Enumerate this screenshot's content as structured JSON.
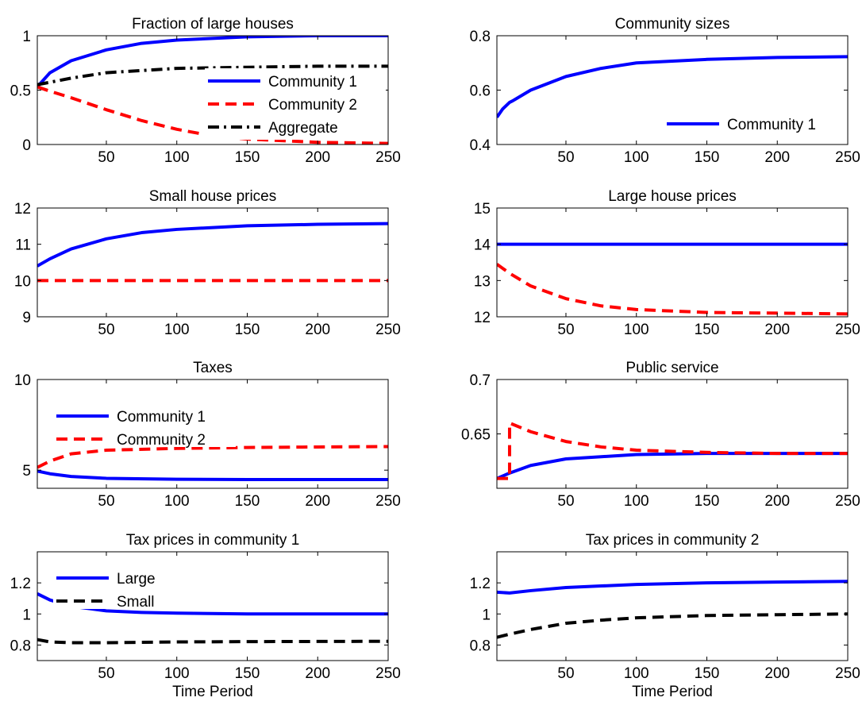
{
  "chart_data": [
    {
      "type": "line",
      "title": "Fraction of large houses",
      "xlabel": "",
      "xlim": [
        1,
        250
      ],
      "ylim": [
        0,
        1
      ],
      "xticks": [
        50,
        100,
        150,
        200,
        250
      ],
      "yticks": [
        0,
        0.5,
        1
      ],
      "xtick_labels": [
        "50",
        "100",
        "150",
        "200",
        "250"
      ],
      "ytick_labels": [
        "0",
        "0.5",
        "1"
      ],
      "legend": "right",
      "series": [
        {
          "name": "Community 1",
          "color": "#0000ff",
          "dash": "solid",
          "x": [
            1,
            10,
            25,
            50,
            75,
            100,
            150,
            200,
            250
          ],
          "y": [
            0.53,
            0.66,
            0.77,
            0.87,
            0.93,
            0.96,
            0.99,
            1.0,
            1.0
          ]
        },
        {
          "name": "Community 2",
          "color": "#ff0000",
          "dash": "dashed",
          "x": [
            1,
            10,
            25,
            50,
            75,
            100,
            125,
            150,
            200,
            250
          ],
          "y": [
            0.53,
            0.49,
            0.43,
            0.32,
            0.22,
            0.14,
            0.08,
            0.05,
            0.02,
            0.01
          ]
        },
        {
          "name": "Aggregate",
          "color": "#000000",
          "dash": "dashdot",
          "x": [
            1,
            25,
            50,
            100,
            150,
            200,
            250
          ],
          "y": [
            0.55,
            0.61,
            0.66,
            0.7,
            0.71,
            0.72,
            0.72
          ]
        }
      ]
    },
    {
      "type": "line",
      "title": "Community sizes",
      "xlabel": "",
      "xlim": [
        1,
        250
      ],
      "ylim": [
        0.4,
        0.8
      ],
      "xticks": [
        50,
        100,
        150,
        200,
        250
      ],
      "yticks": [
        0.4,
        0.6,
        0.8
      ],
      "xtick_labels": [
        "50",
        "100",
        "150",
        "200",
        "250"
      ],
      "ytick_labels": [
        "0.4",
        "0.6",
        "0.8"
      ],
      "legend": "bottom-right",
      "series": [
        {
          "name": "Community 1",
          "color": "#0000ff",
          "dash": "solid",
          "x": [
            1,
            5,
            10,
            12,
            25,
            50,
            75,
            100,
            150,
            200,
            250
          ],
          "y": [
            0.5,
            0.53,
            0.555,
            0.56,
            0.6,
            0.65,
            0.68,
            0.7,
            0.713,
            0.72,
            0.723
          ]
        }
      ]
    },
    {
      "type": "line",
      "title": "Small house prices",
      "xlabel": "",
      "xlim": [
        1,
        250
      ],
      "ylim": [
        9,
        12
      ],
      "xticks": [
        50,
        100,
        150,
        200,
        250
      ],
      "yticks": [
        9,
        10,
        11,
        12
      ],
      "xtick_labels": [
        "50",
        "100",
        "150",
        "200",
        "250"
      ],
      "ytick_labels": [
        "9",
        "10",
        "11",
        "12"
      ],
      "legend": "none",
      "series": [
        {
          "color": "#0000ff",
          "dash": "solid",
          "x": [
            1,
            10,
            25,
            50,
            75,
            100,
            150,
            200,
            250
          ],
          "y": [
            10.4,
            10.6,
            10.87,
            11.15,
            11.32,
            11.41,
            11.51,
            11.55,
            11.57
          ]
        },
        {
          "color": "#ff0000",
          "dash": "dashed",
          "x": [
            1,
            250
          ],
          "y": [
            10.0,
            10.0
          ]
        }
      ]
    },
    {
      "type": "line",
      "title": "Large house prices",
      "xlabel": "",
      "xlim": [
        1,
        250
      ],
      "ylim": [
        12,
        15
      ],
      "xticks": [
        50,
        100,
        150,
        200,
        250
      ],
      "yticks": [
        12,
        13,
        14,
        15
      ],
      "xtick_labels": [
        "50",
        "100",
        "150",
        "200",
        "250"
      ],
      "ytick_labels": [
        "12",
        "13",
        "14",
        "15"
      ],
      "legend": "none",
      "series": [
        {
          "color": "#0000ff",
          "dash": "solid",
          "x": [
            1,
            250
          ],
          "y": [
            14.0,
            14.0
          ]
        },
        {
          "color": "#ff0000",
          "dash": "dashed",
          "x": [
            1,
            10,
            25,
            50,
            75,
            100,
            150,
            200,
            250
          ],
          "y": [
            13.45,
            13.2,
            12.85,
            12.5,
            12.3,
            12.2,
            12.12,
            12.1,
            12.08
          ]
        }
      ]
    },
    {
      "type": "line",
      "title": "Taxes",
      "xlabel": "",
      "xlim": [
        1,
        250
      ],
      "ylim": [
        4,
        10
      ],
      "xticks": [
        50,
        100,
        150,
        200,
        250
      ],
      "yticks": [
        5,
        10
      ],
      "xtick_labels": [
        "50",
        "100",
        "150",
        "200",
        "250"
      ],
      "ytick_labels": [
        "5",
        "10"
      ],
      "legend": "top-left",
      "series": [
        {
          "name": "Community 1",
          "color": "#0000ff",
          "dash": "solid",
          "x": [
            1,
            10,
            25,
            50,
            100,
            150,
            200,
            250
          ],
          "y": [
            4.95,
            4.8,
            4.65,
            4.55,
            4.5,
            4.48,
            4.48,
            4.48
          ]
        },
        {
          "name": "Community 2",
          "color": "#ff0000",
          "dash": "dashed",
          "x": [
            1,
            10,
            25,
            50,
            100,
            150,
            200,
            250
          ],
          "y": [
            5.15,
            5.5,
            5.9,
            6.1,
            6.2,
            6.25,
            6.28,
            6.3
          ]
        }
      ]
    },
    {
      "type": "line",
      "title": "Public service",
      "xlabel": "",
      "xlim": [
        1,
        250
      ],
      "ylim": [
        0.6,
        0.7
      ],
      "xticks": [
        50,
        100,
        150,
        200,
        250
      ],
      "yticks": [
        0.65,
        0.7
      ],
      "xtick_labels": [
        "50",
        "100",
        "150",
        "200",
        "250"
      ],
      "ytick_labels": [
        "0.65",
        "0.7"
      ],
      "legend": "none",
      "series": [
        {
          "color": "#0000ff",
          "dash": "solid",
          "x": [
            1,
            10,
            25,
            50,
            75,
            100,
            150,
            200,
            250
          ],
          "y": [
            0.609,
            0.614,
            0.621,
            0.627,
            0.629,
            0.631,
            0.632,
            0.632,
            0.632
          ]
        },
        {
          "color": "#ff0000",
          "dash": "dashed",
          "x": [
            1,
            10,
            10,
            25,
            50,
            75,
            100,
            150,
            200,
            250
          ],
          "y": [
            0.609,
            0.609,
            0.66,
            0.652,
            0.643,
            0.638,
            0.635,
            0.633,
            0.632,
            0.632
          ]
        }
      ]
    },
    {
      "type": "line",
      "title": "Tax prices in community 1",
      "xlabel": "Time Period",
      "xlim": [
        1,
        250
      ],
      "ylim": [
        0.7,
        1.4
      ],
      "xticks": [
        50,
        100,
        150,
        200,
        250
      ],
      "yticks": [
        0.8,
        1,
        1.2
      ],
      "xtick_labels": [
        "50",
        "100",
        "150",
        "200",
        "250"
      ],
      "ytick_labels": [
        "0.8",
        "1",
        "1.2"
      ],
      "legend": "top-left",
      "series": [
        {
          "name": "Large",
          "color": "#0000ff",
          "dash": "solid",
          "x": [
            1,
            10,
            25,
            50,
            75,
            100,
            150,
            200,
            250
          ],
          "y": [
            1.13,
            1.09,
            1.05,
            1.02,
            1.01,
            1.005,
            1.0,
            1.0,
            1.0
          ]
        },
        {
          "name": "Small",
          "color": "#000000",
          "dash": "dashed",
          "x": [
            1,
            10,
            25,
            50,
            100,
            150,
            200,
            250
          ],
          "y": [
            0.835,
            0.82,
            0.815,
            0.815,
            0.82,
            0.822,
            0.823,
            0.824
          ]
        }
      ]
    },
    {
      "type": "line",
      "title": "Tax prices in community 2",
      "xlabel": "Time Period",
      "xlim": [
        1,
        250
      ],
      "ylim": [
        0.7,
        1.4
      ],
      "xticks": [
        50,
        100,
        150,
        200,
        250
      ],
      "yticks": [
        0.8,
        1,
        1.2
      ],
      "xtick_labels": [
        "50",
        "100",
        "150",
        "200",
        "250"
      ],
      "ytick_labels": [
        "0.8",
        "1",
        "1.2"
      ],
      "legend": "none",
      "series": [
        {
          "color": "#0000ff",
          "dash": "solid",
          "x": [
            1,
            10,
            25,
            50,
            75,
            100,
            150,
            200,
            250
          ],
          "y": [
            1.14,
            1.135,
            1.15,
            1.17,
            1.18,
            1.19,
            1.2,
            1.205,
            1.21
          ]
        },
        {
          "color": "#000000",
          "dash": "dashed",
          "x": [
            1,
            10,
            25,
            50,
            75,
            100,
            150,
            200,
            250
          ],
          "y": [
            0.85,
            0.87,
            0.9,
            0.94,
            0.96,
            0.975,
            0.99,
            0.995,
            1.0
          ]
        }
      ]
    }
  ]
}
